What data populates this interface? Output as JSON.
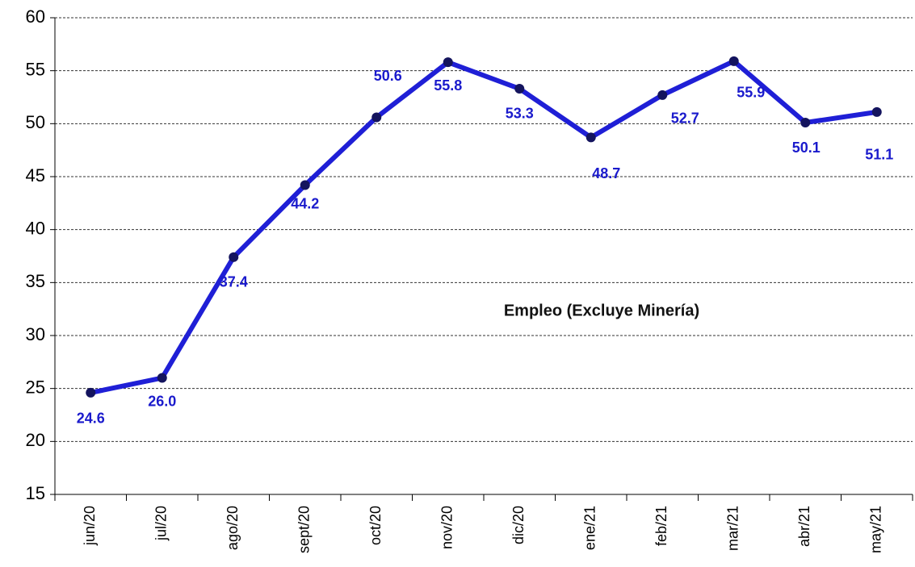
{
  "chart_data": {
    "type": "line",
    "annotation": "Empleo (Excluye Minería)",
    "categories": [
      "jun/20",
      "jul/20",
      "ago/20",
      "sept/20",
      "oct/20",
      "nov/20",
      "dic/20",
      "ene/21",
      "feb/21",
      "mar/21",
      "abr/21",
      "may/21"
    ],
    "values": [
      24.6,
      26.0,
      37.4,
      44.2,
      50.6,
      55.8,
      53.3,
      48.7,
      52.7,
      55.9,
      50.1,
      51.1
    ],
    "value_labels": [
      "24.6",
      "26.0",
      "37.4",
      "44.2",
      "50.6",
      "55.8",
      "53.3",
      "48.7",
      "52.7",
      "55.9",
      "50.1",
      "51.1"
    ],
    "color": "#1f1fd6",
    "marker_color": "#14145e",
    "label_color": "#1a1acc",
    "ylim": [
      15,
      60
    ],
    "yticks": [
      15,
      20,
      25,
      30,
      35,
      40,
      45,
      50,
      55,
      60
    ],
    "grid": true
  }
}
